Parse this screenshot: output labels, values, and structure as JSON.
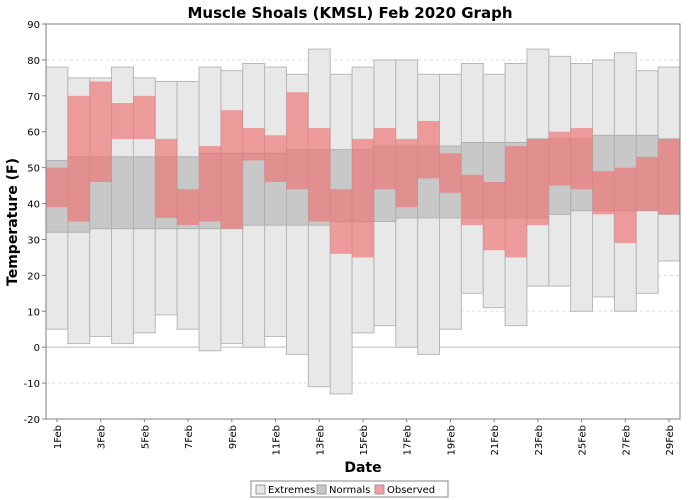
{
  "chart_data": {
    "type": "bar",
    "title": "Muscle Shoals (KMSL) Feb 2020 Graph",
    "xlabel": "Date",
    "ylabel": "Temperature (F)",
    "ylim": [
      -20,
      90
    ],
    "yticks": [
      -20,
      -10,
      0,
      10,
      20,
      30,
      40,
      50,
      60,
      70,
      80,
      90
    ],
    "grid": true,
    "legend_placement": "bottom-center",
    "categories": [
      "1Feb",
      "2Feb",
      "3Feb",
      "4Feb",
      "5Feb",
      "6Feb",
      "7Feb",
      "8Feb",
      "9Feb",
      "10Feb",
      "11Feb",
      "12Feb",
      "13Feb",
      "14Feb",
      "15Feb",
      "16Feb",
      "17Feb",
      "18Feb",
      "19Feb",
      "20Feb",
      "21Feb",
      "22Feb",
      "23Feb",
      "24Feb",
      "25Feb",
      "26Feb",
      "27Feb",
      "28Feb",
      "29Feb"
    ],
    "tick_labels": [
      "1Feb",
      "3Feb",
      "5Feb",
      "7Feb",
      "9Feb",
      "11Feb",
      "13Feb",
      "15Feb",
      "17Feb",
      "19Feb",
      "21Feb",
      "23Feb",
      "25Feb",
      "27Feb",
      "29Feb"
    ],
    "series": [
      {
        "name": "Extremes",
        "color": "#e8e8e8",
        "high": [
          78,
          75,
          75,
          78,
          75,
          74,
          74,
          78,
          77,
          79,
          78,
          76,
          83,
          76,
          78,
          80,
          80,
          76,
          76,
          79,
          76,
          79,
          83,
          81,
          79,
          80,
          82,
          77,
          78
        ],
        "low": [
          5,
          1,
          3,
          1,
          4,
          9,
          5,
          -1,
          1,
          0,
          3,
          -2,
          -11,
          -13,
          4,
          6,
          0,
          -2,
          5,
          15,
          11,
          6,
          17,
          17,
          10,
          14,
          10,
          15,
          24
        ]
      },
      {
        "name": "Normals",
        "color": "#c8c8c8",
        "high": [
          52,
          53,
          53,
          53,
          53,
          53,
          53,
          54,
          54,
          54,
          54,
          55,
          55,
          55,
          55,
          56,
          56,
          56,
          56,
          57,
          57,
          57,
          58,
          58,
          58,
          59,
          59,
          59,
          58
        ],
        "low": [
          32,
          32,
          33,
          33,
          33,
          33,
          33,
          33,
          33,
          34,
          34,
          34,
          34,
          35,
          35,
          35,
          36,
          36,
          36,
          36,
          36,
          36,
          36,
          37,
          38,
          38,
          38,
          38,
          37
        ]
      },
      {
        "name": "Observed",
        "color": "#f08080",
        "high": [
          50,
          70,
          74,
          68,
          70,
          58,
          44,
          56,
          66,
          61,
          59,
          71,
          61,
          44,
          58,
          61,
          58,
          63,
          54,
          48,
          46,
          56,
          58,
          60,
          61,
          49,
          50,
          53,
          58
        ],
        "low": [
          39,
          35,
          46,
          58,
          58,
          36,
          34,
          35,
          33,
          52,
          46,
          44,
          35,
          26,
          25,
          44,
          39,
          47,
          43,
          34,
          27,
          25,
          34,
          45,
          44,
          37,
          29,
          38,
          37
        ]
      }
    ]
  }
}
